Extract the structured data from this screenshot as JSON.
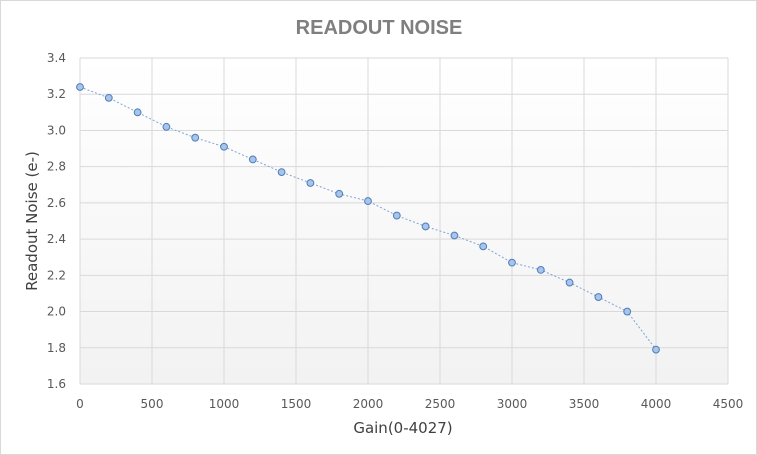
{
  "chart_data": {
    "type": "line",
    "title": "READOUT NOISE",
    "xlabel": "Gain(0-4027)",
    "ylabel": "Readout Noise (e-)",
    "xlim": [
      0,
      4500
    ],
    "ylim": [
      1.6,
      3.4
    ],
    "x_ticks": [
      "0",
      "500",
      "1000",
      "1500",
      "2000",
      "2500",
      "3000",
      "3500",
      "4000",
      "4500"
    ],
    "y_ticks": [
      "1.6",
      "1.8",
      "2.0",
      "2.2",
      "2.4",
      "2.6",
      "2.8",
      "3.0",
      "3.2",
      "3.4"
    ],
    "grid": true,
    "legend": "none",
    "series": [
      {
        "x": [
          0,
          200,
          400,
          600,
          800,
          1000,
          1200,
          1400,
          1600,
          1800,
          2000,
          2200,
          2400,
          2600,
          2800,
          3000,
          3200,
          3400,
          3600,
          3800,
          4000
        ],
        "y": [
          3.24,
          3.18,
          3.1,
          3.02,
          2.96,
          2.91,
          2.84,
          2.77,
          2.71,
          2.65,
          2.61,
          2.53,
          2.47,
          2.42,
          2.36,
          2.27,
          2.23,
          2.16,
          2.08,
          2.0,
          1.79
        ],
        "marker_fill": "#a9c4e8",
        "marker_stroke": "#4a7ebb",
        "line_color": "#7fa4d6"
      }
    ]
  },
  "colors": {
    "grid": "#d9d9d9",
    "plot_bg_top": "#ffffff",
    "plot_bg_bottom": "#f2f2f2"
  }
}
